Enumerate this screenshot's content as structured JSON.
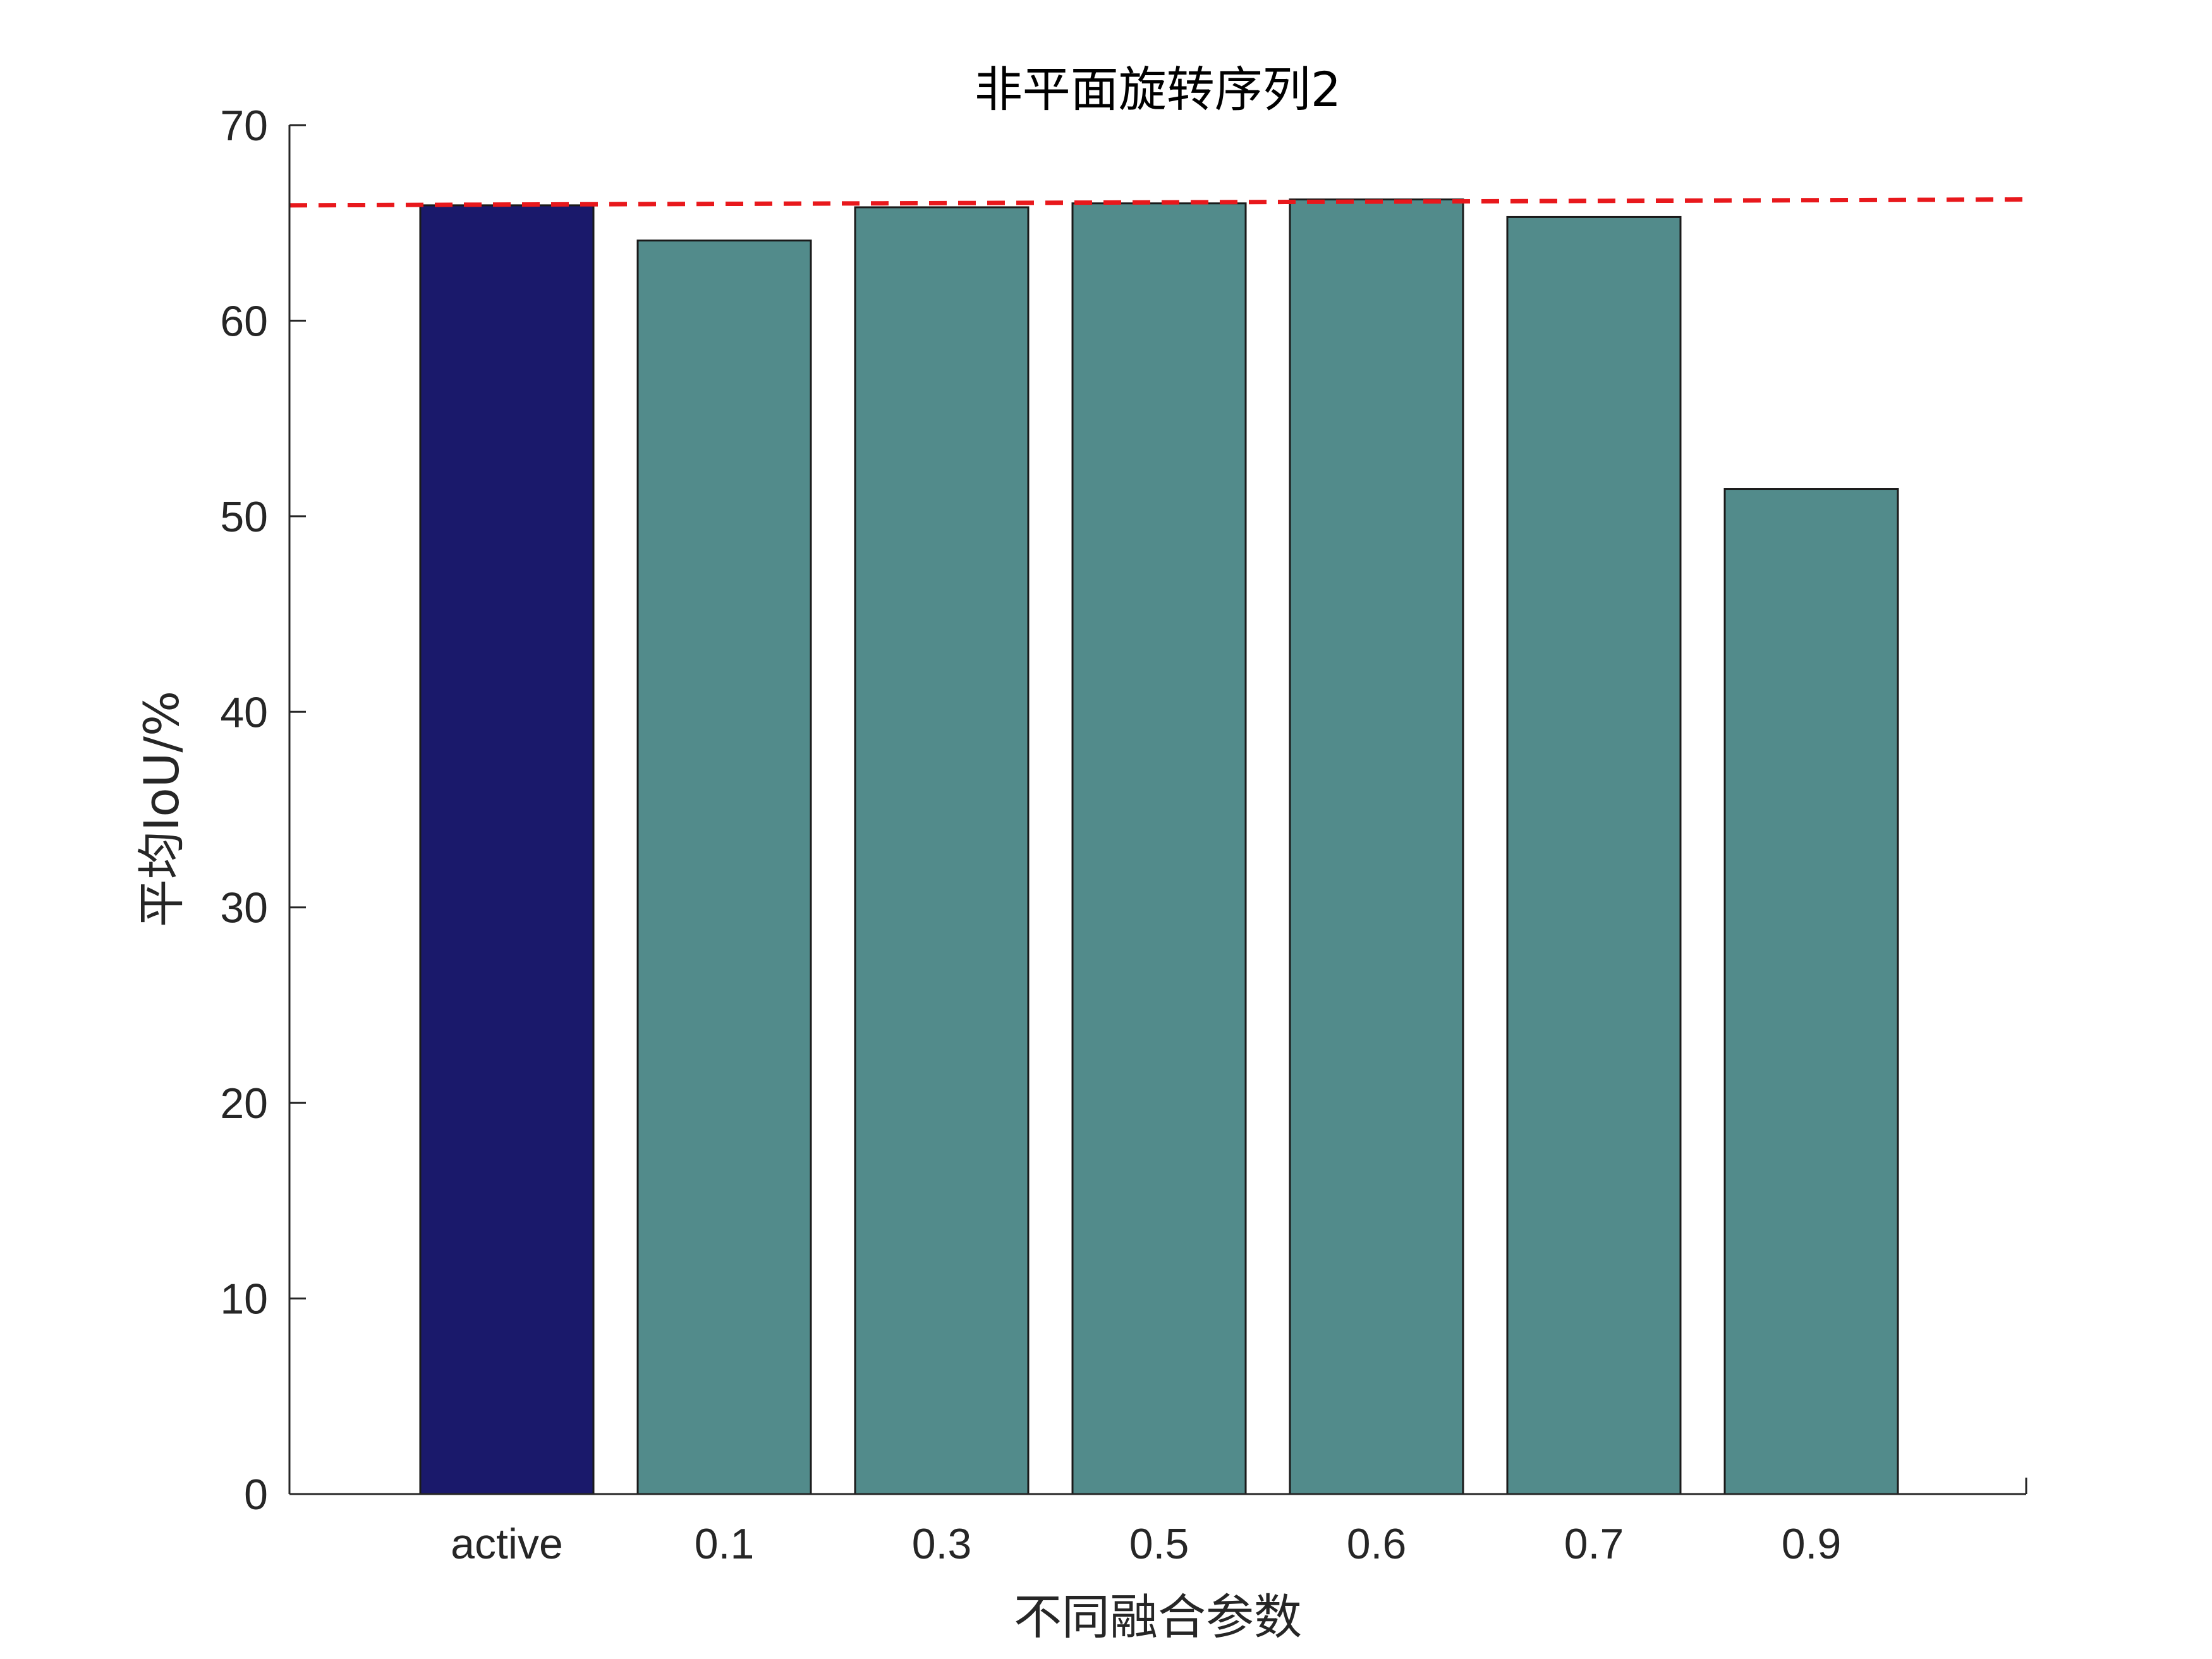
{
  "chart_data": {
    "type": "bar",
    "title": "非平面旋转序列2",
    "xlabel": "不同融合参数",
    "ylabel": "平均IoU/%",
    "categories": [
      "active",
      "0.1",
      "0.3",
      "0.5",
      "0.6",
      "0.7",
      "0.9"
    ],
    "values": [
      65.9,
      64.1,
      65.8,
      66.0,
      66.2,
      65.3,
      51.4
    ],
    "bar_colors": [
      "#1a196b",
      "#528b8b",
      "#528b8b",
      "#528b8b",
      "#528b8b",
      "#528b8b",
      "#528b8b"
    ],
    "ylim": [
      0,
      70
    ],
    "yticks": [
      "0",
      "10",
      "20",
      "30",
      "40",
      "50",
      "60",
      "70"
    ],
    "reference_line": {
      "style": "dashed",
      "color": "#e8181c",
      "y_start": 65.9,
      "y_end": 66.2
    },
    "grid": false,
    "legend": "none"
  }
}
